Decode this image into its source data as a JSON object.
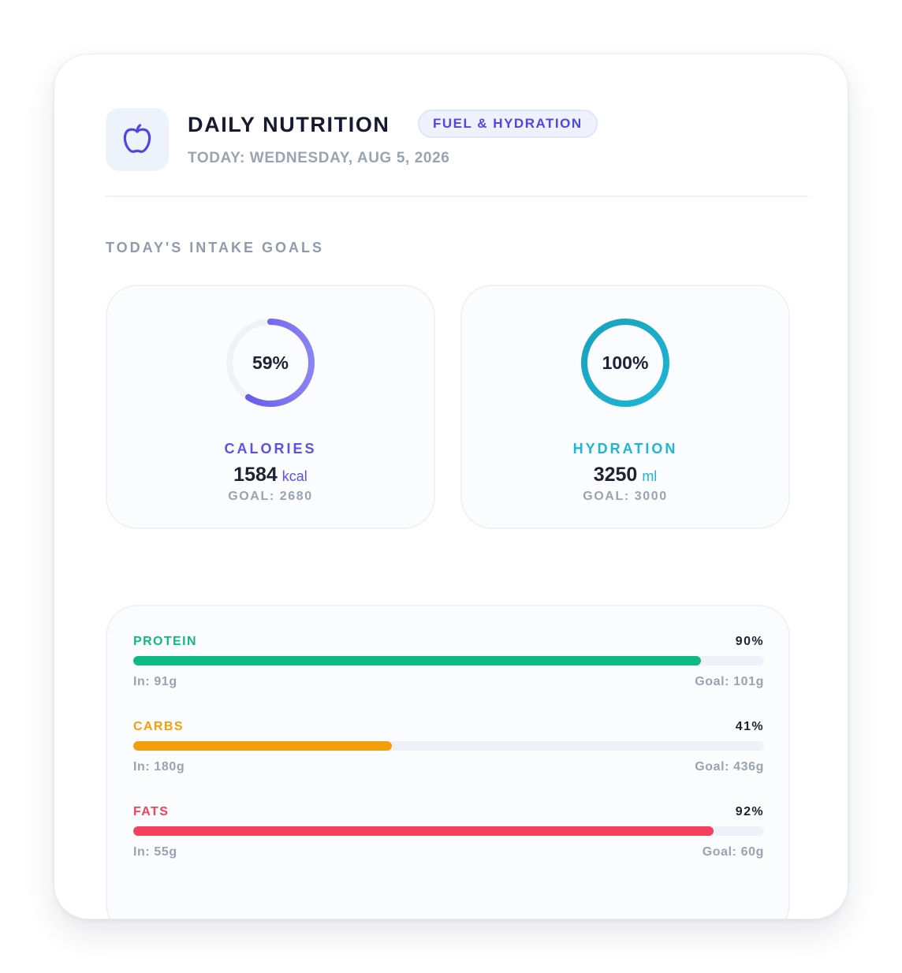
{
  "header": {
    "icon": "apple-icon",
    "title": "DAILY NUTRITION",
    "badge": "FUEL & HYDRATION",
    "date": "TODAY: WEDNESDAY, AUG 5, 2026"
  },
  "section_title": "TODAY'S INTAKE GOALS",
  "goals": [
    {
      "label": "CALORIES",
      "percent_label": "59%",
      "progress": 0.59,
      "value": "1584",
      "unit": "kcal",
      "goal": "GOAL: 2680",
      "color": "#5b52e8",
      "color_light": "#8a83f3"
    },
    {
      "label": "HYDRATION",
      "percent_label": "100%",
      "progress": 1.0,
      "value": "3250",
      "unit": "ml",
      "goal": "GOAL: 3000",
      "color": "#1fb6d5",
      "color_light": "#17a2bd"
    }
  ],
  "macros": [
    {
      "name": "PROTEIN",
      "percent_label": "90%",
      "progress": 0.9,
      "in": "In: 91g",
      "goal": "Goal: 101g",
      "color": "#10b981"
    },
    {
      "name": "CARBS",
      "percent_label": "41%",
      "progress": 0.41,
      "in": "In: 180g",
      "goal": "Goal: 436g",
      "color": "#f59e0b"
    },
    {
      "name": "FATS",
      "percent_label": "92%",
      "progress": 0.92,
      "in": "In: 55g",
      "goal": "Goal: 60g",
      "color": "#f43f5e"
    }
  ],
  "colors": {
    "track": "#eef2f8",
    "accent": "#4f46e5"
  }
}
